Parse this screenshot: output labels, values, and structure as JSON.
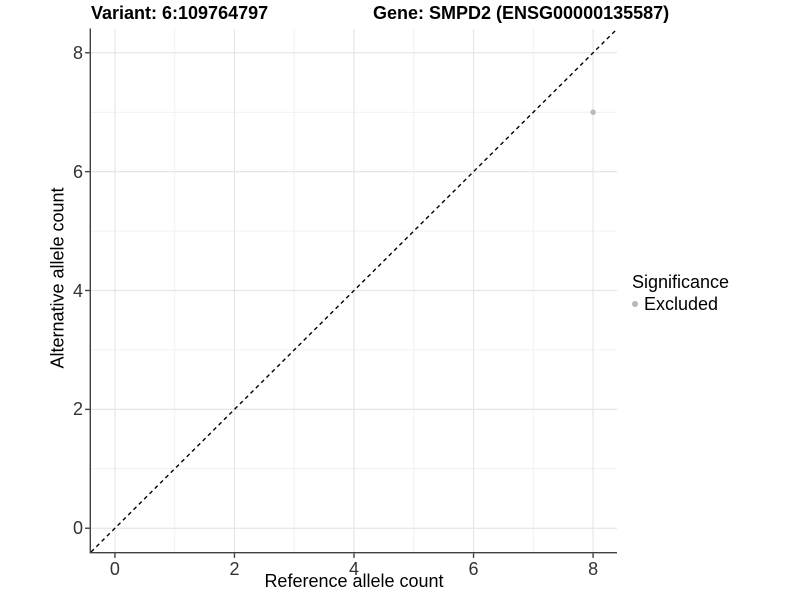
{
  "titles": {
    "variant": "Variant: 6:109764797",
    "gene": "Gene: SMPD2 (ENSG00000135587)"
  },
  "chart_data": {
    "type": "scatter",
    "xlabel": "Reference allele count",
    "ylabel": "Alternative allele count",
    "xlim": [
      -0.4,
      8.4
    ],
    "ylim": [
      -0.4,
      8.4
    ],
    "xticks": [
      0,
      2,
      4,
      6,
      8
    ],
    "yticks": [
      0,
      2,
      4,
      6,
      8
    ],
    "xminor": [
      1,
      3,
      5,
      7
    ],
    "yminor": [
      1,
      3,
      5,
      7
    ],
    "grid": true,
    "identity_line": {
      "style": "dashed",
      "color": "#000000",
      "from": [
        -0.4,
        -0.4
      ],
      "to": [
        8.4,
        8.4
      ]
    },
    "series": [
      {
        "name": "Excluded",
        "color": "#b8b8b8",
        "points": [
          [
            8,
            7
          ]
        ]
      }
    ],
    "legend": {
      "title": "Significance",
      "position": "right",
      "entries": [
        {
          "label": "Excluded",
          "color": "#b8b8b8"
        }
      ]
    }
  },
  "colors": {
    "background": "#ffffff",
    "grid_major": "#e6e6e6",
    "grid_minor": "#f1f1f1",
    "axis_line": "#404040",
    "tick_text": "#333333",
    "point": "#b8b8b8",
    "identity_line": "#000000"
  }
}
